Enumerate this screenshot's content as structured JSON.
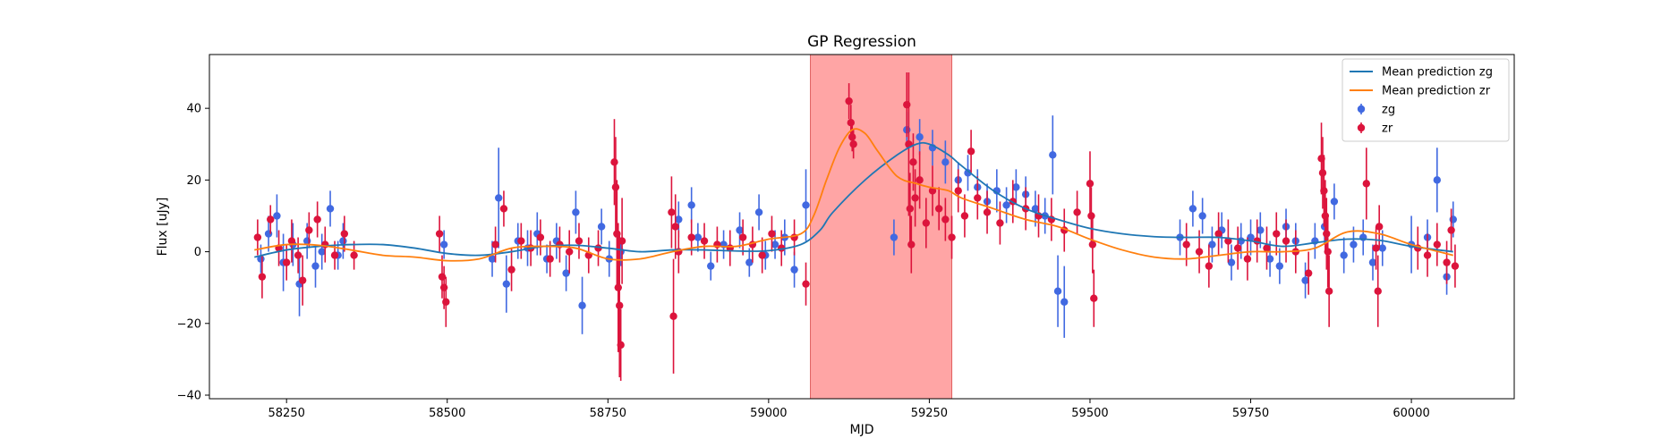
{
  "chart_data": {
    "type": "scatter",
    "title": "GP Regression",
    "xlabel": "MJD",
    "ylabel": "Flux [uJy]",
    "xlim": [
      58130,
      60160
    ],
    "ylim": [
      -41,
      55
    ],
    "xticks": [
      58250,
      58500,
      58750,
      59000,
      59250,
      59500,
      59750,
      60000
    ],
    "yticks": [
      -40,
      -20,
      0,
      20,
      40
    ],
    "grid": false,
    "legend_position": "top-right",
    "highlight_band": {
      "x_start": 59065,
      "x_end": 59285,
      "color": "#ff7f7f"
    },
    "series": [
      {
        "name": "Mean prediction zg",
        "kind": "line",
        "color": "#1f77b4",
        "x": [
          58200,
          58250,
          58300,
          58350,
          58400,
          58450,
          58500,
          58550,
          58600,
          58650,
          58700,
          58750,
          58800,
          58850,
          58900,
          58950,
          59000,
          59050,
          59080,
          59100,
          59150,
          59200,
          59230,
          59250,
          59280,
          59300,
          59350,
          59400,
          59450,
          59500,
          59550,
          59600,
          59650,
          59700,
          59750,
          59800,
          59850,
          59900,
          59950,
          60000,
          60065
        ],
        "y": [
          -1.5,
          0.5,
          1.5,
          2.0,
          2.0,
          1.0,
          -0.5,
          -1.0,
          0.0,
          1.5,
          1.8,
          1.0,
          0.0,
          0.5,
          0.5,
          0.2,
          0.3,
          2.0,
          6.0,
          11.0,
          20.0,
          27.0,
          30.0,
          30.0,
          27.0,
          24.0,
          17.0,
          12.0,
          9.0,
          6.5,
          5.0,
          4.2,
          4.0,
          4.0,
          3.0,
          1.5,
          2.5,
          3.5,
          3.2,
          1.5,
          0.0
        ]
      },
      {
        "name": "Mean prediction zr",
        "kind": "line",
        "color": "#ff7f0e",
        "x": [
          58200,
          58250,
          58300,
          58350,
          58400,
          58450,
          58500,
          58550,
          58600,
          58650,
          58700,
          58750,
          58800,
          58850,
          58900,
          58950,
          59000,
          59050,
          59070,
          59090,
          59110,
          59130,
          59150,
          59170,
          59200,
          59230,
          59250,
          59280,
          59300,
          59350,
          59400,
          59450,
          59500,
          59550,
          59600,
          59650,
          59700,
          59750,
          59800,
          59850,
          59900,
          59950,
          60000,
          60065
        ],
        "y": [
          0.5,
          2.0,
          1.8,
          0.5,
          -1.0,
          -1.5,
          -2.5,
          -2.0,
          1.0,
          1.5,
          1.0,
          -2.0,
          -2.0,
          0.0,
          1.5,
          1.5,
          3.5,
          5.0,
          10.0,
          20.0,
          29.0,
          34.0,
          33.0,
          28.0,
          21.0,
          19.0,
          18.0,
          17.0,
          15.0,
          12.0,
          9.0,
          7.0,
          3.5,
          0.5,
          -1.5,
          -2.0,
          -1.0,
          0.0,
          0.0,
          1.0,
          5.5,
          5.0,
          2.0,
          -1.0
        ]
      },
      {
        "name": "zg",
        "kind": "errorbar",
        "color": "#4169e1",
        "x": [
          58210,
          58222,
          58235,
          58245,
          58260,
          58270,
          58282,
          58295,
          58305,
          58318,
          58330,
          58338,
          58495,
          58570,
          58580,
          58592,
          58610,
          58625,
          58640,
          58655,
          58670,
          58685,
          58700,
          58710,
          58740,
          58752,
          58770,
          58860,
          58880,
          58890,
          58910,
          58930,
          58955,
          58970,
          58985,
          58995,
          59010,
          59025,
          59040,
          59058,
          59195,
          59215,
          59235,
          59255,
          59275,
          59295,
          59310,
          59325,
          59340,
          59355,
          59370,
          59385,
          59400,
          59415,
          59430,
          59442,
          59450,
          59460,
          59640,
          59660,
          59675,
          59690,
          59705,
          59720,
          59735,
          59750,
          59765,
          59780,
          59795,
          59805,
          59820,
          59835,
          59850,
          59865,
          59880,
          59895,
          59910,
          59925,
          59940,
          59955,
          60000,
          60025,
          60040,
          60055,
          60065
        ],
        "y": [
          -2,
          5,
          10,
          -3,
          2,
          -9,
          3,
          -4,
          0,
          12,
          -1,
          3,
          2,
          -2,
          15,
          -9,
          3,
          1,
          5,
          -2,
          3,
          -6,
          11,
          -15,
          7,
          -2,
          0,
          9,
          13,
          4,
          -4,
          2,
          6,
          -3,
          11,
          -1,
          2,
          4,
          -5,
          13,
          4,
          34,
          32,
          29,
          25,
          20,
          22,
          18,
          14,
          17,
          13,
          18,
          16,
          12,
          10,
          27,
          -11,
          -14,
          4,
          12,
          10,
          2,
          6,
          -3,
          3,
          4,
          6,
          -2,
          -4,
          7,
          3,
          -8,
          3,
          7,
          14,
          -1,
          2,
          4,
          -3,
          1,
          2,
          4,
          20,
          -7,
          9
        ],
        "err": [
          4,
          5,
          6,
          8,
          6,
          9,
          5,
          6,
          5,
          5,
          4,
          5,
          4,
          5,
          14,
          8,
          5,
          5,
          6,
          4,
          5,
          5,
          6,
          8,
          5,
          5,
          4,
          5,
          5,
          4,
          4,
          4,
          5,
          4,
          5,
          4,
          4,
          5,
          5,
          10,
          5,
          5,
          5,
          5,
          6,
          5,
          5,
          5,
          5,
          6,
          5,
          5,
          5,
          5,
          5,
          11,
          10,
          10,
          5,
          5,
          5,
          5,
          5,
          5,
          5,
          5,
          5,
          5,
          5,
          5,
          5,
          5,
          5,
          5,
          5,
          5,
          5,
          5,
          5,
          5,
          8,
          5,
          9,
          5,
          5
        ]
      },
      {
        "name": "zr",
        "kind": "errorbar",
        "color": "#dc143c",
        "x": [
          58205,
          58212,
          58225,
          58238,
          58250,
          58258,
          58268,
          58275,
          58285,
          58298,
          58310,
          58325,
          58340,
          58355,
          58488,
          58492,
          58495,
          58498,
          58575,
          58588,
          58600,
          58615,
          58630,
          58645,
          58660,
          58675,
          58690,
          58705,
          58720,
          58735,
          58760,
          58762,
          58764,
          58766,
          58768,
          58770,
          58772,
          58849,
          58852,
          58855,
          58860,
          58880,
          58900,
          58920,
          58940,
          58960,
          58975,
          58990,
          59005,
          59020,
          59040,
          59058,
          59125,
          59128,
          59130,
          59132,
          59215,
          59218,
          59220,
          59222,
          59225,
          59228,
          59235,
          59245,
          59255,
          59265,
          59275,
          59285,
          59295,
          59305,
          59315,
          59325,
          59340,
          59360,
          59380,
          59400,
          59420,
          59440,
          59460,
          59480,
          59500,
          59502,
          59504,
          59506,
          59650,
          59670,
          59685,
          59700,
          59715,
          59730,
          59745,
          59760,
          59775,
          59790,
          59805,
          59820,
          59840,
          59860,
          59862,
          59864,
          59866,
          59868,
          59870,
          59872,
          59930,
          59945,
          59948,
          59950,
          60010,
          60025,
          60040,
          60055,
          60062,
          60068
        ],
        "y": [
          4,
          -7,
          9,
          1,
          -3,
          3,
          -1,
          -8,
          6,
          9,
          2,
          -1,
          5,
          -1,
          5,
          -7,
          -10,
          -14,
          2,
          12,
          -5,
          3,
          1,
          4,
          -2,
          2,
          0,
          3,
          -1,
          1,
          25,
          18,
          5,
          -10,
          -15,
          -26,
          3,
          11,
          -18,
          7,
          0,
          4,
          3,
          2,
          1,
          4,
          2,
          -1,
          5,
          1,
          4,
          -9,
          42,
          36,
          32,
          30,
          41,
          30,
          12,
          2,
          25,
          15,
          20,
          8,
          17,
          12,
          9,
          4,
          17,
          10,
          28,
          15,
          11,
          8,
          14,
          12,
          10,
          9,
          6,
          11,
          19,
          10,
          2,
          -13,
          2,
          0,
          -4,
          5,
          3,
          1,
          -2,
          3,
          1,
          5,
          3,
          0,
          -6,
          26,
          22,
          17,
          10,
          5,
          0,
          -11,
          19,
          1,
          -11,
          7,
          1,
          -1,
          2,
          -3,
          6,
          -4
        ],
        "err": [
          5,
          6,
          4,
          5,
          5,
          6,
          5,
          7,
          5,
          5,
          5,
          4,
          5,
          4,
          5,
          6,
          6,
          7,
          5,
          5,
          6,
          5,
          5,
          5,
          5,
          5,
          6,
          5,
          5,
          5,
          12,
          14,
          15,
          18,
          20,
          10,
          12,
          10,
          16,
          9,
          6,
          5,
          5,
          5,
          5,
          5,
          5,
          5,
          5,
          5,
          5,
          6,
          5,
          5,
          4,
          4,
          9,
          20,
          10,
          8,
          8,
          8,
          8,
          7,
          7,
          6,
          6,
          6,
          6,
          6,
          6,
          6,
          6,
          6,
          6,
          6,
          6,
          6,
          6,
          6,
          9,
          8,
          8,
          8,
          6,
          6,
          6,
          6,
          6,
          6,
          6,
          6,
          6,
          6,
          6,
          6,
          6,
          10,
          10,
          10,
          10,
          10,
          10,
          10,
          10,
          6,
          10,
          6,
          6,
          6,
          6,
          6,
          6,
          6
        ]
      }
    ]
  }
}
